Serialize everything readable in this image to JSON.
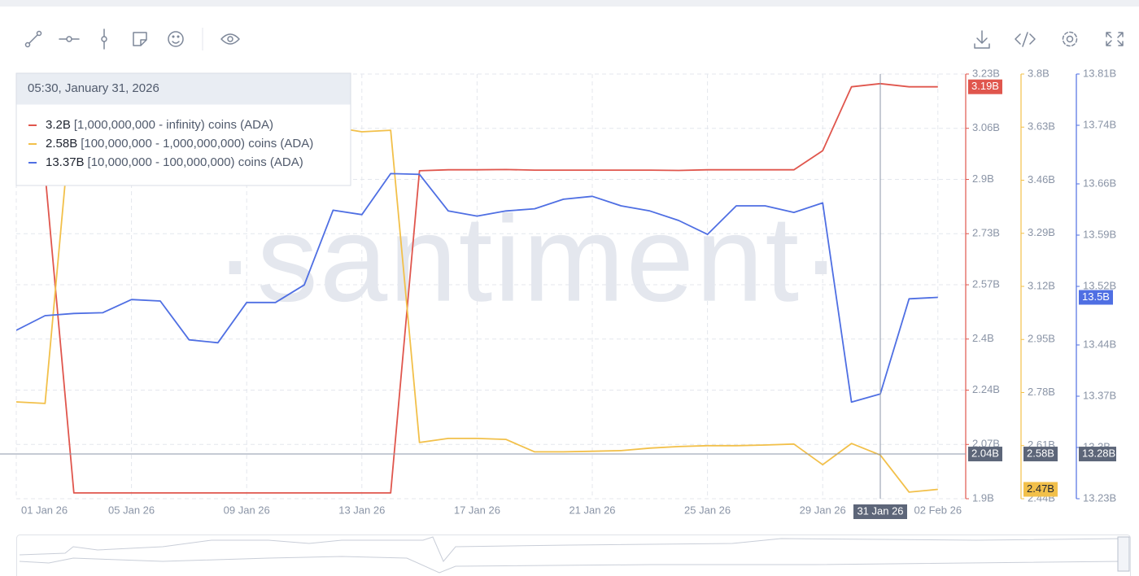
{
  "chart_data": {
    "type": "line",
    "watermark": "·santiment·",
    "x": [
      "2026-01-01",
      "2026-01-02",
      "2026-01-03",
      "2026-01-04",
      "2026-01-05",
      "2026-01-06",
      "2026-01-07",
      "2026-01-08",
      "2026-01-09",
      "2026-01-10",
      "2026-01-11",
      "2026-01-12",
      "2026-01-13",
      "2026-01-14",
      "2026-01-15",
      "2026-01-16",
      "2026-01-17",
      "2026-01-18",
      "2026-01-19",
      "2026-01-20",
      "2026-01-21",
      "2026-01-22",
      "2026-01-23",
      "2026-01-24",
      "2026-01-25",
      "2026-01-26",
      "2026-01-27",
      "2026-01-28",
      "2026-01-29",
      "2026-01-30",
      "2026-01-31",
      "2026-02-01",
      "2026-02-02"
    ],
    "xticks": [
      {
        "value": "2026-01-01",
        "label": "01 Jan 26"
      },
      {
        "value": "2026-01-05",
        "label": "05 Jan 26"
      },
      {
        "value": "2026-01-09",
        "label": "09 Jan 26"
      },
      {
        "value": "2026-01-13",
        "label": "13 Jan 26"
      },
      {
        "value": "2026-01-17",
        "label": "17 Jan 26"
      },
      {
        "value": "2026-01-21",
        "label": "21 Jan 26"
      },
      {
        "value": "2026-01-25",
        "label": "25 Jan 26"
      },
      {
        "value": "2026-01-29",
        "label": "29 Jan 26"
      },
      {
        "value": "2026-02-02",
        "label": "02 Feb 26"
      }
    ],
    "ylim": [
      1.9,
      3.23
    ],
    "yticks": [
      {
        "value": 1.9,
        "label": "1.9B"
      },
      {
        "value": 2.07,
        "label": "2.07B"
      },
      {
        "value": 2.24,
        "label": "2.24B"
      },
      {
        "value": 2.4,
        "label": "2.4B"
      },
      {
        "value": 2.57,
        "label": "2.57B"
      },
      {
        "value": 2.73,
        "label": "2.73B"
      },
      {
        "value": 2.9,
        "label": "2.9B"
      },
      {
        "value": 3.06,
        "label": "3.06B"
      },
      {
        "value": 3.23,
        "label": "3.23B"
      }
    ],
    "y2lim": [
      2.44,
      3.8
    ],
    "y2ticks": [
      {
        "value": 2.44,
        "label": "2.44B"
      },
      {
        "value": 2.61,
        "label": "2.61B"
      },
      {
        "value": 2.78,
        "label": "2.78B"
      },
      {
        "value": 2.95,
        "label": "2.95B"
      },
      {
        "value": 3.12,
        "label": "3.12B"
      },
      {
        "value": 3.29,
        "label": "3.29B"
      },
      {
        "value": 3.46,
        "label": "3.46B"
      },
      {
        "value": 3.63,
        "label": "3.63B"
      },
      {
        "value": 3.8,
        "label": "3.8B"
      }
    ],
    "y3lim": [
      13.23,
      13.81
    ],
    "y3ticks": [
      {
        "value": 13.23,
        "label": "13.23B"
      },
      {
        "value": 13.3,
        "label": "13.3B"
      },
      {
        "value": 13.37,
        "label": "13.37B"
      },
      {
        "value": 13.44,
        "label": "13.44B"
      },
      {
        "value": 13.52,
        "label": "13.52B"
      },
      {
        "value": 13.59,
        "label": "13.59B"
      },
      {
        "value": 13.66,
        "label": "13.66B"
      },
      {
        "value": 13.74,
        "label": "13.74B"
      },
      {
        "value": 13.81,
        "label": "13.81B"
      }
    ],
    "grid": true,
    "series": [
      {
        "name": "[1,000,000,000 - infinity) coins (ADA)",
        "color": "#e0564d",
        "axis": "y",
        "last_label": "3.19B",
        "values": [
          2.927,
          2.92,
          1.918,
          1.918,
          1.918,
          1.918,
          1.918,
          1.918,
          1.918,
          1.918,
          1.918,
          1.918,
          1.918,
          1.918,
          2.927,
          2.93,
          2.93,
          2.931,
          2.929,
          2.929,
          2.929,
          2.929,
          2.929,
          2.928,
          2.93,
          2.93,
          2.93,
          2.93,
          2.99,
          3.19,
          3.2,
          3.19,
          3.19
        ]
      },
      {
        "name": "[100,000,000 - 1,000,000,000) coins (ADA)",
        "color": "#f2c04a",
        "axis": "y2",
        "last_label": "2.47B",
        "values": [
          2.75,
          2.745,
          3.76,
          3.77,
          3.77,
          3.76,
          3.76,
          3.75,
          3.75,
          3.74,
          3.72,
          3.63,
          3.615,
          3.62,
          2.62,
          2.633,
          2.633,
          2.63,
          2.59,
          2.59,
          2.592,
          2.594,
          2.602,
          2.607,
          2.61,
          2.61,
          2.612,
          2.615,
          2.549,
          2.617,
          2.58,
          2.461,
          2.47
        ]
      },
      {
        "name": "[10,000,000 - 100,000,000) coins (ADA)",
        "color": "#4f6fe3",
        "axis": "y3",
        "last_label": "13.5B",
        "values": [
          13.46,
          13.48,
          13.483,
          13.484,
          13.502,
          13.5,
          13.447,
          13.443,
          13.498,
          13.498,
          13.522,
          13.624,
          13.618,
          13.674,
          13.673,
          13.623,
          13.616,
          13.623,
          13.626,
          13.639,
          13.643,
          13.63,
          13.623,
          13.61,
          13.591,
          13.63,
          13.63,
          13.621,
          13.634,
          13.362,
          13.373,
          13.503,
          13.505
        ]
      }
    ],
    "tooltip": {
      "title": "05:30, January 31, 2026",
      "value_labels": [
        "3.2B",
        "2.58B",
        "13.37B"
      ]
    },
    "crosshair": {
      "x": "2026-01-31",
      "x_label": "31 Jan 26",
      "y": 2.04,
      "y_labels": [
        "2.04B",
        "2.58B",
        "13.28B"
      ]
    }
  }
}
